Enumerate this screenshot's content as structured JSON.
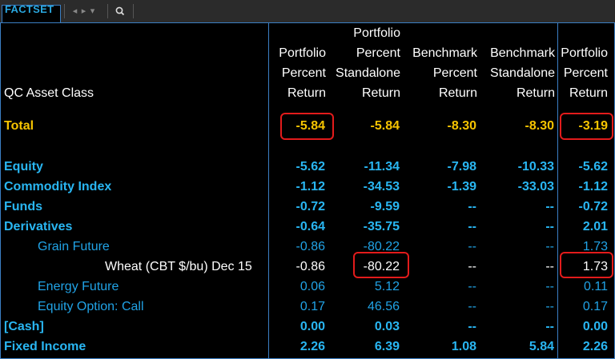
{
  "toolbar": {
    "brand": "FACTSET",
    "nav_back": "◂",
    "nav_forward": "▸",
    "nav_menu": "▾"
  },
  "colors": {
    "highlight": "#f6c400",
    "bold_row": "#29b6f2",
    "sub_row": "#21a3e6",
    "detail": "#ffffff",
    "annotation": "#e21b1b",
    "divider": "#3b7fc4"
  },
  "headers": {
    "asset_class": "QC Asset Class",
    "col1": [
      "Portfolio",
      "Percent",
      "Return"
    ],
    "col2": [
      "Portfolio",
      "Percent",
      "Standalone",
      "Return"
    ],
    "col3": [
      "Benchmark",
      "Percent",
      "Return"
    ],
    "col4": [
      "Benchmark",
      "Standalone",
      "Return"
    ],
    "col5": [
      "Portfolio",
      "Percent",
      "Return"
    ]
  },
  "rows": [
    {
      "label": "Total",
      "values": [
        "-5.84",
        "-5.84",
        "-8.30",
        "-8.30",
        "-3.19"
      ]
    },
    {
      "label": "Equity",
      "values": [
        "-5.62",
        "-11.34",
        "-7.98",
        "-10.33",
        "-5.62"
      ]
    },
    {
      "label": "Commodity Index",
      "values": [
        "-1.12",
        "-34.53",
        "-1.39",
        "-33.03",
        "-1.12"
      ]
    },
    {
      "label": "Funds",
      "values": [
        "-0.72",
        "-9.59",
        "--",
        "--",
        "-0.72"
      ]
    },
    {
      "label": "Derivatives",
      "values": [
        "-0.64",
        "-35.75",
        "--",
        "--",
        "2.01"
      ]
    },
    {
      "label": "Grain Future",
      "values": [
        "-0.86",
        "-80.22",
        "--",
        "--",
        "1.73"
      ]
    },
    {
      "label": "Wheat (CBT $/bu) Dec 15",
      "values": [
        "-0.86",
        "-80.22",
        "--",
        "--",
        "1.73"
      ]
    },
    {
      "label": "Energy Future",
      "values": [
        "0.06",
        "5.12",
        "--",
        "--",
        "0.11"
      ]
    },
    {
      "label": "Equity Option: Call",
      "values": [
        "0.17",
        "46.56",
        "--",
        "--",
        "0.17"
      ]
    },
    {
      "label": "[Cash]",
      "values": [
        "0.00",
        "0.03",
        "--",
        "--",
        "0.00"
      ]
    },
    {
      "label": "Fixed Income",
      "values": [
        "2.26",
        "6.39",
        "1.08",
        "5.84",
        "2.26"
      ]
    }
  ]
}
